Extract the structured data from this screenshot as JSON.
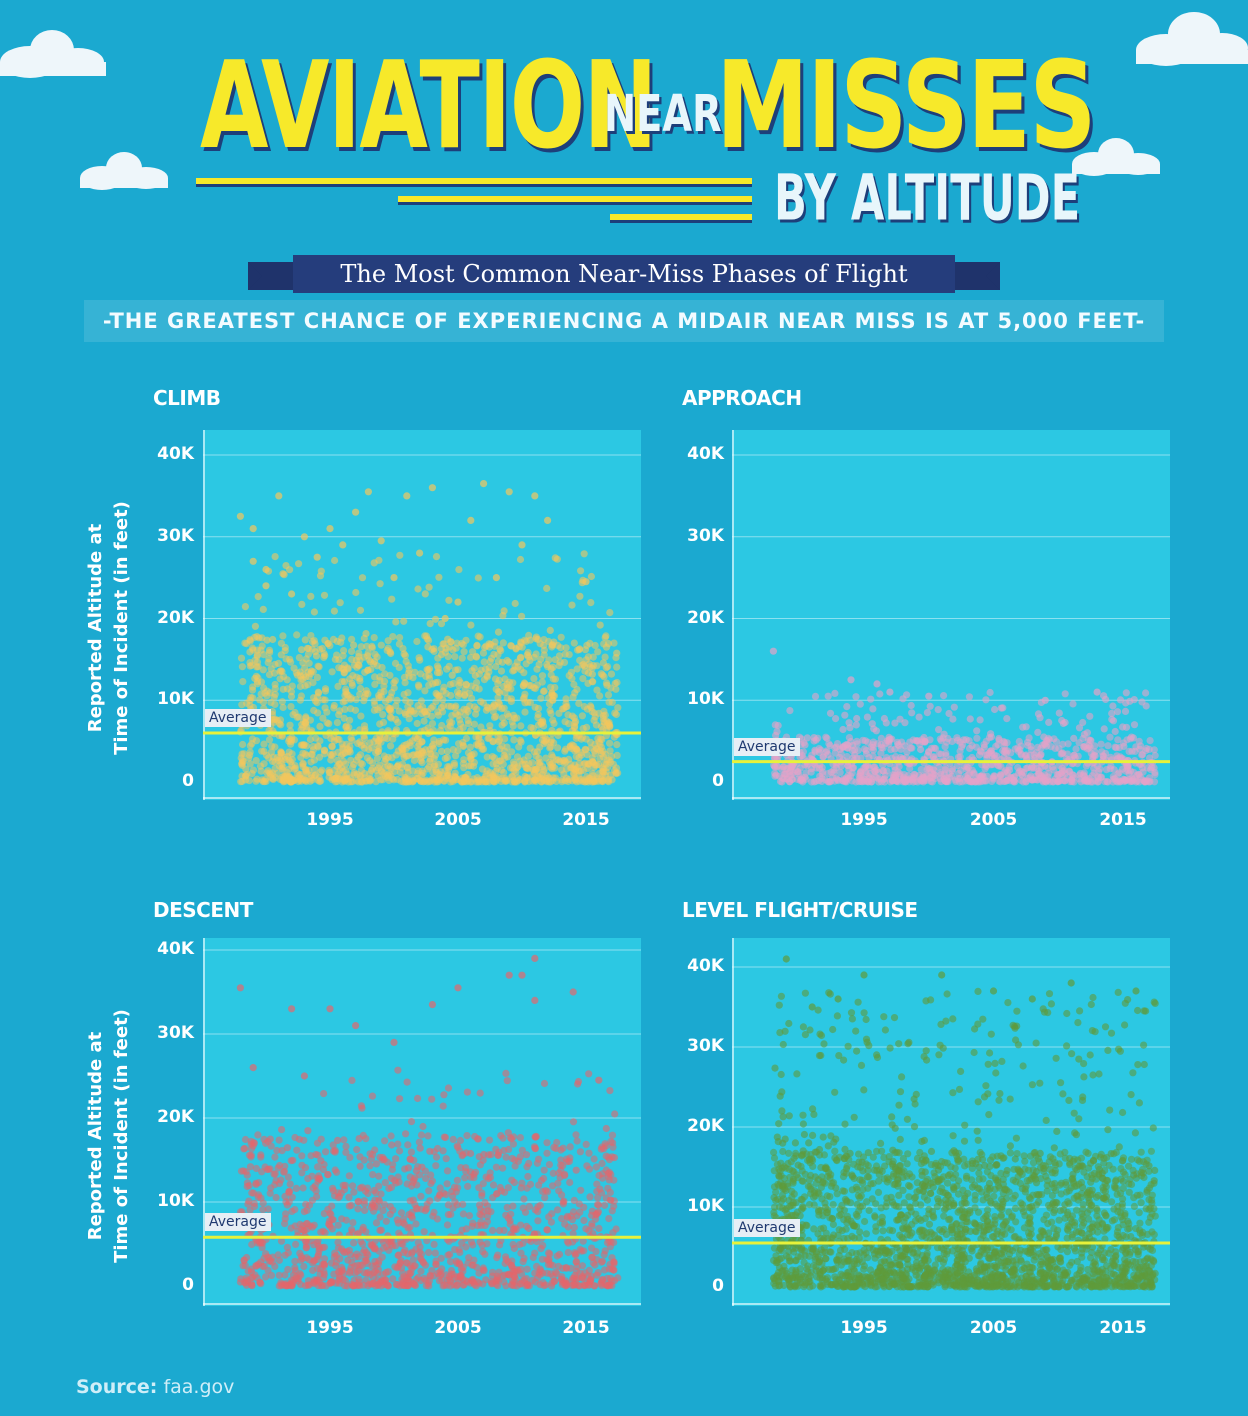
{
  "header": {
    "title_word1": "AVIATION",
    "title_word2": "NEAR",
    "title_word3": "MISSES",
    "title_word4": "BY ALTITUDE",
    "ribbon": "The Most Common Near-Miss Phases of Flight",
    "subtitle": "-THE GREATEST CHANCE OF EXPERIENCING A MIDAIR NEAR MISS IS AT 5,000 FEET-"
  },
  "colors": {
    "background": "#1ba9d0",
    "plot_background": "#2cc8e3",
    "title_yellow": "#f7e92a",
    "ribbon_navy": "#253d7c",
    "average_line": "#e8f23a"
  },
  "y_axis_label_line1": "Reported Altitude at",
  "y_axis_label_line2": "Time of Incident (in feet)",
  "average_label": "Average",
  "source_label": "Source:",
  "source_value": "faa.gov",
  "chart_data": [
    {
      "type": "scatter",
      "title": "CLIMB",
      "color": "#f3c65c",
      "x_range": [
        1987,
        2018
      ],
      "ylim": [
        0,
        42000
      ],
      "x_ticks": [
        "1995",
        "2005",
        "2015"
      ],
      "y_ticks": [
        "0",
        "10K",
        "20K",
        "30K",
        "40K"
      ],
      "average": 6000,
      "x_start": 1988,
      "x_end": 2017,
      "dense_max": 18000,
      "mid_max": 28000,
      "outliers": [
        [
          1988,
          32500
        ],
        [
          1989,
          31000
        ],
        [
          1989,
          27000
        ],
        [
          1990,
          26000
        ],
        [
          1990,
          24000
        ],
        [
          1991,
          35000
        ],
        [
          1992,
          23000
        ],
        [
          1993,
          30000
        ],
        [
          1994,
          27500
        ],
        [
          1996,
          29000
        ],
        [
          1997,
          33000
        ],
        [
          1998,
          35500
        ],
        [
          1999,
          29500
        ],
        [
          2000,
          25000
        ],
        [
          2001,
          35000
        ],
        [
          2002,
          28000
        ],
        [
          2003,
          36000
        ],
        [
          2004,
          20000
        ],
        [
          2006,
          32000
        ],
        [
          2007,
          36500
        ],
        [
          2008,
          25000
        ],
        [
          2009,
          35500
        ],
        [
          2010,
          29000
        ],
        [
          2011,
          35000
        ],
        [
          2012,
          32000
        ],
        [
          2015,
          24500
        ],
        [
          1995,
          31000
        ],
        [
          2005,
          22000
        ]
      ],
      "n_dense": 1700,
      "n_mid": 90
    },
    {
      "type": "scatter",
      "title": "APPROACH",
      "color": "#e4a3c8",
      "x_range": [
        1987,
        2018
      ],
      "ylim": [
        0,
        42000
      ],
      "x_ticks": [
        "1995",
        "2005",
        "2015"
      ],
      "y_ticks": [
        "0",
        "10K",
        "20K",
        "30K",
        "40K"
      ],
      "average": 2500,
      "x_start": 1988,
      "x_end": 2017,
      "dense_max": 5500,
      "mid_max": 11000,
      "outliers": [
        [
          1988,
          16000
        ],
        [
          1994,
          12500
        ],
        [
          1996,
          12000
        ],
        [
          1997,
          11000
        ],
        [
          2000,
          10500
        ],
        [
          2009,
          10000
        ],
        [
          2013,
          11000
        ]
      ],
      "n_dense": 900,
      "n_mid": 120
    },
    {
      "type": "scatter",
      "title": "DESCENT",
      "color": "#e4666c",
      "x_range": [
        1987,
        2018
      ],
      "ylim": [
        0,
        41000
      ],
      "x_ticks": [
        "1995",
        "2005",
        "2015"
      ],
      "y_ticks": [
        "0",
        "10K",
        "20K",
        "30K",
        "40K"
      ],
      "average": 5800,
      "x_start": 1988,
      "x_end": 2017,
      "dense_max": 18000,
      "mid_max": 26000,
      "outliers": [
        [
          1988,
          35500
        ],
        [
          1992,
          33000
        ],
        [
          1995,
          33000
        ],
        [
          1997,
          31000
        ],
        [
          2000,
          29000
        ],
        [
          2003,
          33500
        ],
        [
          2005,
          35500
        ],
        [
          2009,
          37000
        ],
        [
          2010,
          37000
        ],
        [
          2011,
          39000
        ],
        [
          2011,
          34000
        ],
        [
          2014,
          35000
        ],
        [
          1989,
          26000
        ],
        [
          1993,
          25000
        ],
        [
          2016,
          24500
        ]
      ],
      "n_dense": 1300,
      "n_mid": 60
    },
    {
      "type": "scatter",
      "title": "LEVEL FLIGHT/CRUISE",
      "color": "#5f9a3a",
      "x_range": [
        1987,
        2018
      ],
      "ylim": [
        0,
        41000
      ],
      "x_ticks": [
        "1995",
        "2005",
        "2015"
      ],
      "y_ticks": [
        "0",
        "10K",
        "20K",
        "30K",
        "40K"
      ],
      "average": 5500,
      "x_start": 1988,
      "x_end": 2017,
      "dense_max": 17000,
      "mid_max": 37000,
      "outliers": [
        [
          1989,
          41000
        ],
        [
          1991,
          35000
        ],
        [
          1995,
          39000
        ],
        [
          2001,
          39000
        ],
        [
          2005,
          37000
        ],
        [
          2011,
          38000
        ],
        [
          1993,
          36000
        ],
        [
          2008,
          36000
        ],
        [
          2016,
          37000
        ]
      ],
      "n_dense": 2200,
      "n_mid": 260
    }
  ]
}
